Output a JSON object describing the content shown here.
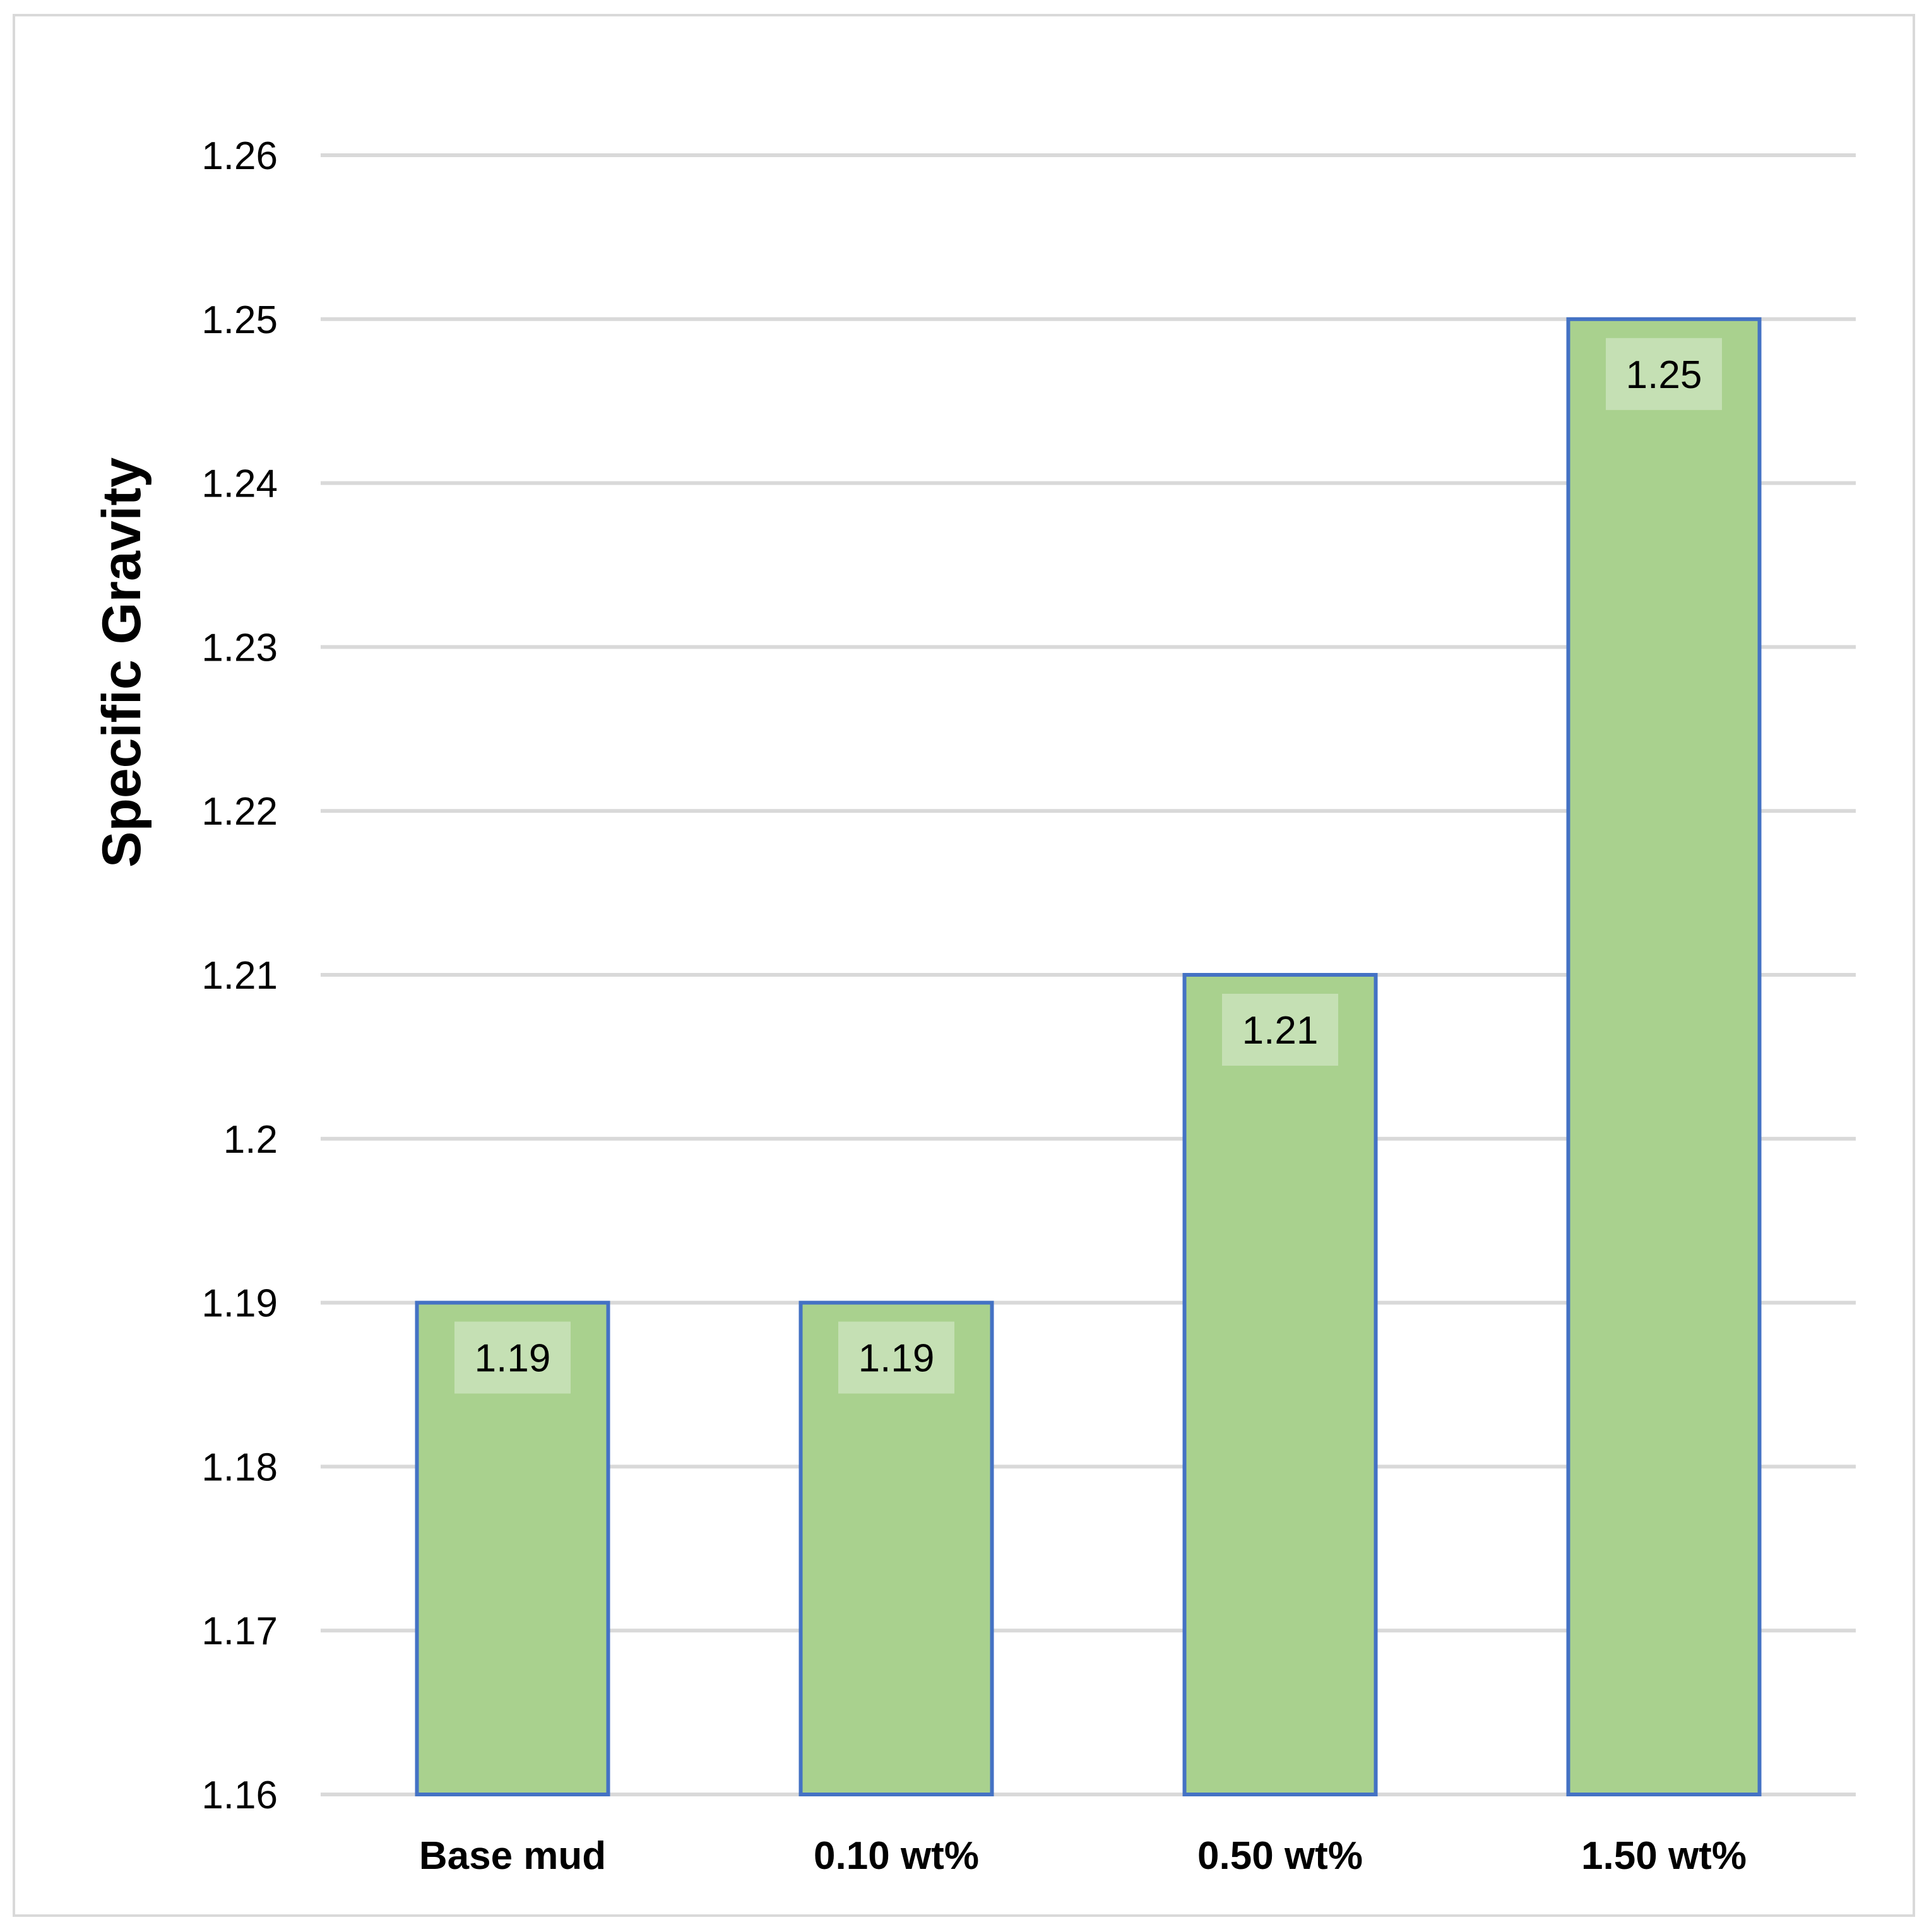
{
  "chart_data": {
    "type": "bar",
    "categories": [
      "Base mud",
      "0.10 wt%",
      "0.50 wt%",
      "1.50 wt%"
    ],
    "values": [
      1.19,
      1.19,
      1.21,
      1.25
    ],
    "data_labels": [
      "1.19",
      "1.19",
      "1.21",
      "1.25"
    ],
    "title": "",
    "xlabel": "",
    "ylabel": "Specific Gravity",
    "ylim": [
      1.16,
      1.26
    ],
    "yticks": [
      "1.16",
      "1.17",
      "1.18",
      "1.19",
      "1.2",
      "1.21",
      "1.22",
      "1.23",
      "1.24",
      "1.25",
      "1.26"
    ],
    "grid": true,
    "legend": "none",
    "colors": {
      "bar_fill": "#a9d18e",
      "bar_stroke": "#4472c4",
      "gridline": "#d9d9d9",
      "label_box": "#c5e0b4"
    }
  }
}
